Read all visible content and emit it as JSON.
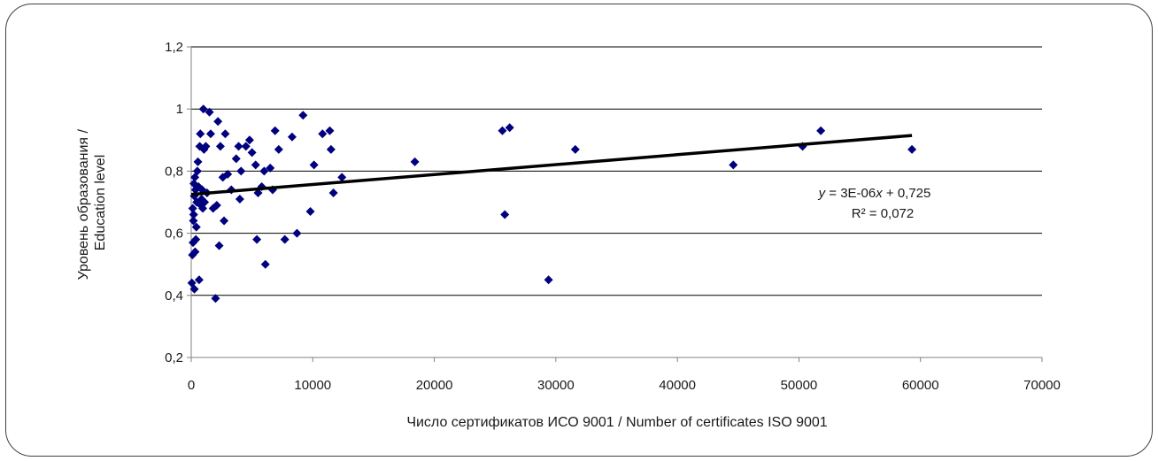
{
  "chart_data": {
    "type": "scatter",
    "xlabel": "Число сертификатов ИСО 9001 / Number of certificates ISO 9001",
    "ylabel_lines": [
      "Уровень образования /",
      "Education level"
    ],
    "xlim": [
      0,
      70000
    ],
    "ylim": [
      0.2,
      1.2
    ],
    "x_ticks": [
      0,
      10000,
      20000,
      30000,
      40000,
      50000,
      60000,
      70000
    ],
    "y_ticks": [
      0.2,
      0.4,
      0.6,
      0.8,
      1.0,
      1.2
    ],
    "x_tick_labels": [
      "0",
      "10000",
      "20000",
      "30000",
      "40000",
      "50000",
      "60000",
      "70000"
    ],
    "y_tick_labels": [
      "0,2",
      "0,4",
      "0,6",
      "0,8",
      "1",
      "1,2"
    ],
    "grid": "horizontal",
    "marker_color": "#00007f",
    "trendline": {
      "slope": 3.2e-06,
      "intercept": 0.725,
      "x_range": [
        0,
        59300
      ],
      "equation_parts": [
        "y",
        " = 3E-06",
        "x",
        " + 0,725"
      ],
      "r_squared": "R² = 0,072"
    },
    "points": [
      {
        "x": 50,
        "y": 0.44
      },
      {
        "x": 100,
        "y": 0.53
      },
      {
        "x": 150,
        "y": 0.57
      },
      {
        "x": 200,
        "y": 0.66
      },
      {
        "x": 250,
        "y": 0.72
      },
      {
        "x": 300,
        "y": 0.78
      },
      {
        "x": 350,
        "y": 0.74
      },
      {
        "x": 120,
        "y": 0.68
      },
      {
        "x": 180,
        "y": 0.64
      },
      {
        "x": 220,
        "y": 0.76
      },
      {
        "x": 260,
        "y": 0.42
      },
      {
        "x": 320,
        "y": 0.54
      },
      {
        "x": 380,
        "y": 0.58
      },
      {
        "x": 420,
        "y": 0.62
      },
      {
        "x": 450,
        "y": 0.7
      },
      {
        "x": 500,
        "y": 0.8
      },
      {
        "x": 550,
        "y": 0.83
      },
      {
        "x": 600,
        "y": 0.75
      },
      {
        "x": 650,
        "y": 0.45
      },
      {
        "x": 700,
        "y": 0.88
      },
      {
        "x": 750,
        "y": 0.92
      },
      {
        "x": 800,
        "y": 0.69
      },
      {
        "x": 850,
        "y": 0.71
      },
      {
        "x": 900,
        "y": 0.74
      },
      {
        "x": 950,
        "y": 0.68
      },
      {
        "x": 1000,
        "y": 1.0
      },
      {
        "x": 1050,
        "y": 0.87
      },
      {
        "x": 1100,
        "y": 0.7
      },
      {
        "x": 1200,
        "y": 0.88
      },
      {
        "x": 1300,
        "y": 0.73
      },
      {
        "x": 1500,
        "y": 0.99
      },
      {
        "x": 1600,
        "y": 0.92
      },
      {
        "x": 1800,
        "y": 0.68
      },
      {
        "x": 2000,
        "y": 0.39
      },
      {
        "x": 2100,
        "y": 0.69
      },
      {
        "x": 2200,
        "y": 0.96
      },
      {
        "x": 2300,
        "y": 0.56
      },
      {
        "x": 2400,
        "y": 0.88
      },
      {
        "x": 2600,
        "y": 0.78
      },
      {
        "x": 2700,
        "y": 0.64
      },
      {
        "x": 2800,
        "y": 0.92
      },
      {
        "x": 3000,
        "y": 0.79
      },
      {
        "x": 3300,
        "y": 0.74
      },
      {
        "x": 3700,
        "y": 0.84
      },
      {
        "x": 3900,
        "y": 0.88
      },
      {
        "x": 4000,
        "y": 0.71
      },
      {
        "x": 4100,
        "y": 0.8
      },
      {
        "x": 4500,
        "y": 0.88
      },
      {
        "x": 4800,
        "y": 0.9
      },
      {
        "x": 5000,
        "y": 0.86
      },
      {
        "x": 5300,
        "y": 0.82
      },
      {
        "x": 5400,
        "y": 0.58
      },
      {
        "x": 5500,
        "y": 0.73
      },
      {
        "x": 5800,
        "y": 0.75
      },
      {
        "x": 6000,
        "y": 0.8
      },
      {
        "x": 6100,
        "y": 0.5
      },
      {
        "x": 6500,
        "y": 0.81
      },
      {
        "x": 6700,
        "y": 0.74
      },
      {
        "x": 6900,
        "y": 0.93
      },
      {
        "x": 7200,
        "y": 0.87
      },
      {
        "x": 7700,
        "y": 0.58
      },
      {
        "x": 8300,
        "y": 0.91
      },
      {
        "x": 8700,
        "y": 0.6
      },
      {
        "x": 9200,
        "y": 0.98
      },
      {
        "x": 9800,
        "y": 0.67
      },
      {
        "x": 10100,
        "y": 0.82
      },
      {
        "x": 10800,
        "y": 0.92
      },
      {
        "x": 11400,
        "y": 0.93
      },
      {
        "x": 11500,
        "y": 0.87
      },
      {
        "x": 11700,
        "y": 0.73
      },
      {
        "x": 12400,
        "y": 0.78
      },
      {
        "x": 18400,
        "y": 0.83
      },
      {
        "x": 25600,
        "y": 0.93
      },
      {
        "x": 25800,
        "y": 0.66
      },
      {
        "x": 26200,
        "y": 0.94
      },
      {
        "x": 29400,
        "y": 0.45
      },
      {
        "x": 31600,
        "y": 0.87
      },
      {
        "x": 44600,
        "y": 0.82
      },
      {
        "x": 50300,
        "y": 0.88
      },
      {
        "x": 51800,
        "y": 0.93
      },
      {
        "x": 59300,
        "y": 0.87
      }
    ]
  }
}
